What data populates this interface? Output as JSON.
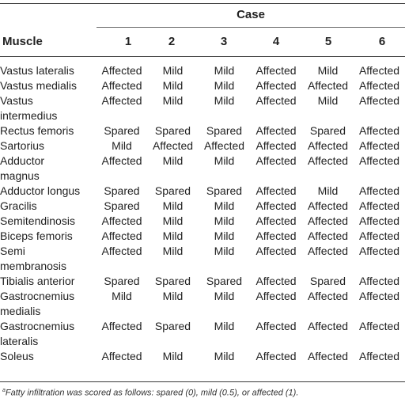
{
  "header": {
    "case_label": "Case",
    "muscle_label": "Muscle",
    "cases": [
      "1",
      "2",
      "3",
      "4",
      "5",
      "6"
    ]
  },
  "rows": [
    {
      "muscle": [
        "Vastus lateralis"
      ],
      "values": [
        "Affected",
        "Mild",
        "Mild",
        "Affected",
        "Mild",
        "Affected"
      ]
    },
    {
      "muscle": [
        "Vastus medialis"
      ],
      "values": [
        "Affected",
        "Mild",
        "Mild",
        "Affected",
        "Affected",
        "Affected"
      ]
    },
    {
      "muscle": [
        "Vastus",
        "intermedius"
      ],
      "values": [
        "Affected",
        "Mild",
        "Mild",
        "Affected",
        "Mild",
        "Affected"
      ]
    },
    {
      "muscle": [
        "Rectus femoris"
      ],
      "values": [
        "Spared",
        "Spared",
        "Spared",
        "Affected",
        "Spared",
        "Affected"
      ]
    },
    {
      "muscle": [
        "Sartorius"
      ],
      "values": [
        "Mild",
        "Affected",
        "Affected",
        "Affected",
        "Affected",
        "Affected"
      ]
    },
    {
      "muscle": [
        "Adductor",
        "magnus"
      ],
      "values": [
        "Affected",
        "Mild",
        "Mild",
        "Affected",
        "Affected",
        "Affected"
      ]
    },
    {
      "muscle": [
        "Adductor longus"
      ],
      "values": [
        "Spared",
        "Spared",
        "Spared",
        "Affected",
        "Mild",
        "Affected"
      ]
    },
    {
      "muscle": [
        "Gracilis"
      ],
      "values": [
        "Spared",
        "Mild",
        "Mild",
        "Affected",
        "Affected",
        "Affected"
      ]
    },
    {
      "muscle": [
        "Semitendinosis"
      ],
      "values": [
        "Affected",
        "Mild",
        "Mild",
        "Affected",
        "Affected",
        "Affected"
      ]
    },
    {
      "muscle": [
        "Biceps femoris"
      ],
      "values": [
        "Affected",
        "Mild",
        "Mild",
        "Affected",
        "Affected",
        "Affected"
      ]
    },
    {
      "muscle": [
        "Semi",
        "membranosis"
      ],
      "values": [
        "Affected",
        "Mild",
        "Mild",
        "Affected",
        "Affected",
        "Affected"
      ]
    },
    {
      "muscle": [
        "Tibialis anterior"
      ],
      "values": [
        "Spared",
        "Spared",
        "Spared",
        "Affected",
        "Spared",
        "Affected"
      ]
    },
    {
      "muscle": [
        "Gastrocnemius",
        "medialis"
      ],
      "values": [
        "Mild",
        "Mild",
        "Mild",
        "Affected",
        "Affected",
        "Affected"
      ]
    },
    {
      "muscle": [
        "Gastrocnemius",
        "lateralis"
      ],
      "values": [
        "Affected",
        "Spared",
        "Mild",
        "Affected",
        "Affected",
        "Affected"
      ]
    },
    {
      "muscle": [
        "Soleus"
      ],
      "values": [
        "Affected",
        "Mild",
        "Mild",
        "Affected",
        "Affected",
        "Affected"
      ]
    }
  ],
  "footnote": {
    "marker": "a",
    "text": "Fatty infiltration was scored as follows: spared (0), mild (0.5), or affected (1)."
  }
}
